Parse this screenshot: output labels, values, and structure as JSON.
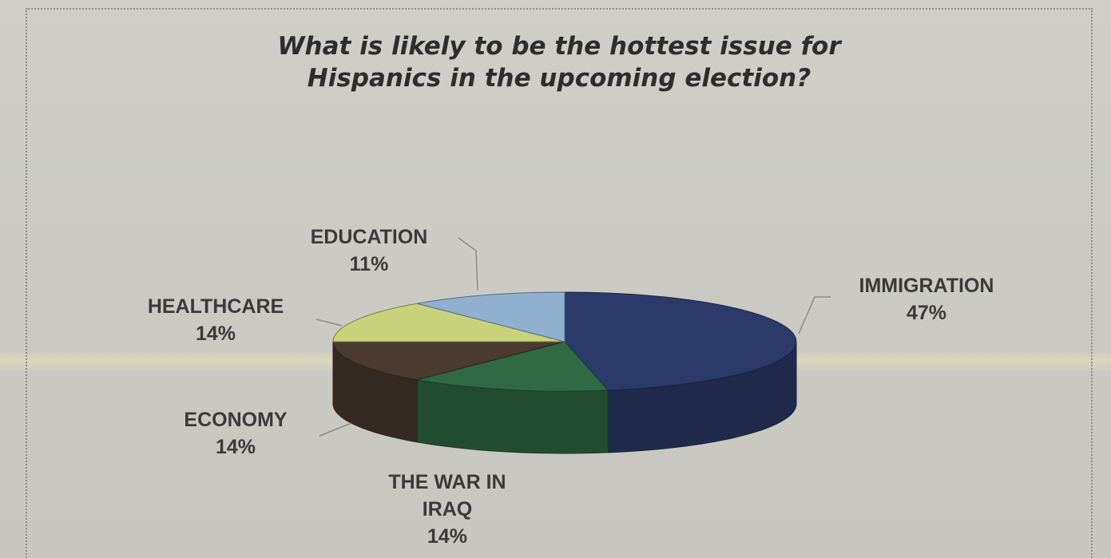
{
  "chart_data": {
    "type": "pie",
    "title": "What is likely to be the hottest issue for Hispanics in the upcoming election?",
    "title_lines": [
      "What is likely to be the hottest issue for",
      "Hispanics in the upcoming election?"
    ],
    "slices": [
      {
        "label": "IMMIGRATION",
        "label_lines": [
          "IMMIGRATION"
        ],
        "value": 47,
        "value_label": "47%",
        "color": "#2b3a6b"
      },
      {
        "label": "THE WAR IN IRAQ",
        "label_lines": [
          "THE WAR IN",
          "IRAQ"
        ],
        "value": 14,
        "value_label": "14%",
        "color": "#2f6a45"
      },
      {
        "label": "ECONOMY",
        "label_lines": [
          "ECONOMY"
        ],
        "value": 14,
        "value_label": "14%",
        "color": "#4a3a30"
      },
      {
        "label": "HEALTHCARE",
        "label_lines": [
          "HEALTHCARE"
        ],
        "value": 14,
        "value_label": "14%",
        "color": "#c8d27a"
      },
      {
        "label": "EDUCATION",
        "label_lines": [
          "EDUCATION"
        ],
        "value": 11,
        "value_label": "11%",
        "color": "#8fb1cf"
      }
    ],
    "three_d": true,
    "legend": "none"
  }
}
